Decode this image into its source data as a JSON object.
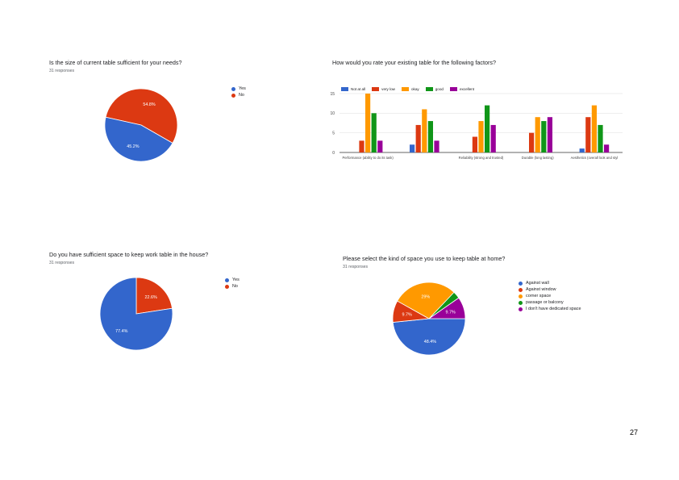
{
  "page_number": "27",
  "colors": {
    "blue": "#3366cc",
    "red": "#dc3912",
    "orange": "#ff9900",
    "green": "#109618",
    "purple": "#990099"
  },
  "charts": {
    "q1": {
      "title": "Is the size of current table sufficient for your needs?",
      "responses": "31 responses",
      "legend": [
        "Yes",
        "No"
      ]
    },
    "q2": {
      "title": "How would you rate your existing table for the following factors?"
    },
    "q3": {
      "title": "Do you have sufficient space to keep work table in the house?",
      "responses": "31 responses",
      "legend": [
        "Yes",
        "No"
      ]
    },
    "q4": {
      "title": "Please select the kind of space you use to keep table at home?",
      "responses": "31 responses",
      "legend": [
        "Against wall",
        "Against window",
        "corner space",
        "passage or balcony",
        "I don't have dedicated space"
      ]
    }
  },
  "chart_data": [
    {
      "type": "pie",
      "title": "Is the size of current table sufficient for your needs?",
      "labels": [
        "Yes",
        "No"
      ],
      "values": [
        45.2,
        54.8
      ],
      "value_labels": [
        "45.2%",
        "54.8%"
      ],
      "colors": [
        "#3366cc",
        "#dc3912"
      ],
      "legend": "right"
    },
    {
      "type": "bar",
      "title": "How would you rate your existing table for the following factors?",
      "categories": [
        "Performance (ability to do its task)",
        "",
        "Reliability (strong and trusted)",
        "Durable (long lasting)",
        "Aesthetics (overall look and styl"
      ],
      "series": [
        {
          "name": "Not at all",
          "color": "#3366cc",
          "values": [
            0,
            2,
            0,
            0,
            1
          ]
        },
        {
          "name": "very low",
          "color": "#dc3912",
          "values": [
            3,
            7,
            4,
            5,
            9
          ]
        },
        {
          "name": "okay",
          "color": "#ff9900",
          "values": [
            15,
            11,
            8,
            9,
            12
          ]
        },
        {
          "name": "good",
          "color": "#109618",
          "values": [
            10,
            8,
            12,
            8,
            7
          ]
        },
        {
          "name": "excellent",
          "color": "#990099",
          "values": [
            3,
            3,
            7,
            9,
            2
          ]
        }
      ],
      "yticks": [
        "0",
        "5",
        "10",
        "15"
      ],
      "ylim": [
        0,
        15
      ],
      "grid": true,
      "legend": "top"
    },
    {
      "type": "pie",
      "title": "Do you have sufficient space to keep work table in the house?",
      "labels": [
        "Yes",
        "No"
      ],
      "values": [
        77.4,
        22.6
      ],
      "value_labels": [
        "77.4%",
        "22.6%"
      ],
      "colors": [
        "#3366cc",
        "#dc3912"
      ],
      "legend": "right"
    },
    {
      "type": "pie",
      "title": "Please select the kind of space you use to keep table at home?",
      "labels": [
        "Against wall",
        "Against window",
        "corner space",
        "passage or balcony",
        "I don't have dedicated space"
      ],
      "values": [
        48.4,
        9.7,
        29.0,
        3.2,
        9.7
      ],
      "value_labels": [
        "48.4%",
        "9.7%",
        "29%",
        "",
        "9.7%"
      ],
      "colors": [
        "#3366cc",
        "#dc3912",
        "#ff9900",
        "#109618",
        "#990099"
      ],
      "legend": "right"
    }
  ]
}
